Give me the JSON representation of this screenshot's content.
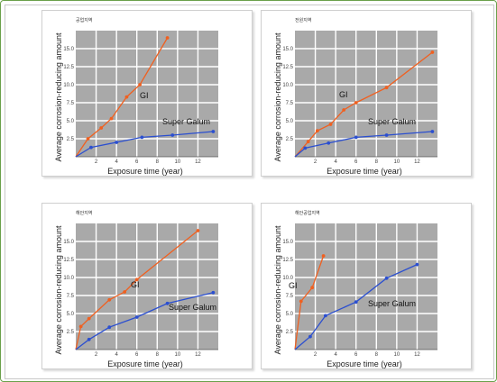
{
  "colors": {
    "frame": "#6aa04a",
    "grid_fill": "#a9a9a9",
    "grid_line": "#ffffff",
    "gi_series": "#f06020",
    "super_galum_series": "#2b4fd0"
  },
  "chart_data": [
    {
      "type": "line",
      "title": "공업지역",
      "xlabel": "Exposure time (year)",
      "ylabel": "Average corrosion-reducing amount",
      "xlim": [
        0,
        14
      ],
      "ylim": [
        0,
        17.5
      ],
      "x_ticks": [
        "2",
        "4",
        "6",
        "8",
        "10",
        "12"
      ],
      "y_ticks": [
        "2.5",
        "5.0",
        "7.5",
        "10.0",
        "12.5",
        "15.0"
      ],
      "grid": true,
      "series": [
        {
          "name": "GI",
          "color": "#f06020",
          "x": [
            0,
            1.2,
            2.5,
            3.5,
            5,
            6.3,
            9
          ],
          "y": [
            0,
            2.5,
            4.0,
            5.3,
            8.3,
            10.0,
            16.5
          ]
        },
        {
          "name": "Super Galum",
          "color": "#2b4fd0",
          "x": [
            0,
            1.5,
            4,
            6.5,
            9.5,
            13.5
          ],
          "y": [
            0,
            1.3,
            2.0,
            2.7,
            3.0,
            3.5
          ]
        }
      ]
    },
    {
      "type": "line",
      "title": "전원지역",
      "xlabel": "Exposure time (year)",
      "ylabel": "Average corrosion-reducing amount",
      "xlim": [
        0,
        14
      ],
      "ylim": [
        0,
        17.5
      ],
      "x_ticks": [
        "2",
        "4",
        "6",
        "8",
        "10",
        "12"
      ],
      "y_ticks": [
        "2.5",
        "5.0",
        "7.5",
        "10.0",
        "12.5",
        "15.0"
      ],
      "grid": true,
      "series": [
        {
          "name": "GI",
          "color": "#f06020",
          "x": [
            0,
            1.3,
            2.2,
            3.5,
            4.8,
            6,
            9,
            13.5
          ],
          "y": [
            0,
            2.1,
            3.6,
            4.5,
            6.5,
            7.5,
            9.6,
            14.5
          ]
        },
        {
          "name": "Super Galum",
          "color": "#2b4fd0",
          "x": [
            0,
            1,
            3.3,
            6,
            9,
            13.5
          ],
          "y": [
            0,
            1.2,
            1.9,
            2.7,
            3.0,
            3.5
          ]
        }
      ]
    },
    {
      "type": "line",
      "title": "해안지역",
      "xlabel": "Exposure time (year)",
      "ylabel": "Average corrosion-reducing amount",
      "xlim": [
        0,
        14
      ],
      "ylim": [
        0,
        17.5
      ],
      "x_ticks": [
        "2",
        "4",
        "6",
        "8",
        "10",
        "12"
      ],
      "y_ticks": [
        "2.5",
        "5.0",
        "7.5",
        "10.0",
        "12.5",
        "15.0"
      ],
      "grid": true,
      "series": [
        {
          "name": "GI",
          "color": "#f06020",
          "x": [
            0,
            0.5,
            1.3,
            3.3,
            4.8,
            6,
            12
          ],
          "y": [
            0,
            3.2,
            4.3,
            6.9,
            8.0,
            9.7,
            16.5
          ]
        },
        {
          "name": "Super Galum",
          "color": "#2b4fd0",
          "x": [
            0,
            1.3,
            3.3,
            6,
            9,
            13.5
          ],
          "y": [
            0,
            1.4,
            3.1,
            4.5,
            6.4,
            7.9
          ]
        }
      ]
    },
    {
      "type": "line",
      "title": "해안공업지역",
      "xlabel": "Exposure time (year)",
      "ylabel": "Average corrosion-reducing amount",
      "xlim": [
        0,
        14
      ],
      "ylim": [
        0,
        17.5
      ],
      "x_ticks": [
        "2",
        "4",
        "6",
        "8",
        "10",
        "12"
      ],
      "y_ticks": [
        "2.5",
        "5.0",
        "7.5",
        "10.0",
        "12.5",
        "15.0"
      ],
      "grid": true,
      "series": [
        {
          "name": "GI",
          "color": "#f06020",
          "x": [
            0,
            0.6,
            1.7,
            2.8
          ],
          "y": [
            0,
            6.7,
            8.6,
            13.0
          ]
        },
        {
          "name": "Super Galum",
          "color": "#2b4fd0",
          "x": [
            0,
            1.5,
            3,
            6,
            9,
            12
          ],
          "y": [
            0,
            1.8,
            4.7,
            6.6,
            9.9,
            11.8
          ]
        }
      ]
    }
  ]
}
